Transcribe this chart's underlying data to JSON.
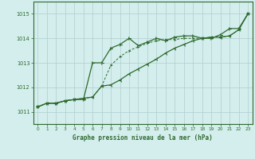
{
  "title": "Graphe pression niveau de la mer (hPa)",
  "xlim": [
    -0.5,
    23.5
  ],
  "ylim": [
    1010.5,
    1015.5
  ],
  "yticks": [
    1011,
    1012,
    1013,
    1014,
    1015
  ],
  "xticks": [
    0,
    1,
    2,
    3,
    4,
    5,
    6,
    7,
    8,
    9,
    10,
    11,
    12,
    13,
    14,
    15,
    16,
    17,
    18,
    19,
    20,
    21,
    22,
    23
  ],
  "background_color": "#d4eeed",
  "grid_color": "#b0cccc",
  "line_color": "#2d6a2d",
  "series1_x": [
    0,
    1,
    2,
    3,
    4,
    5,
    6,
    7,
    8,
    9,
    10,
    11,
    12,
    13,
    14,
    15,
    16,
    17,
    18,
    19,
    20,
    21,
    22,
    23
  ],
  "series1_y": [
    1011.2,
    1011.35,
    1011.35,
    1011.45,
    1011.5,
    1011.5,
    1013.0,
    1013.0,
    1013.6,
    1013.75,
    1014.0,
    1013.7,
    1013.85,
    1014.0,
    1013.9,
    1014.05,
    1014.1,
    1014.1,
    1014.0,
    1014.0,
    1014.15,
    1014.4,
    1014.4,
    1015.0
  ],
  "series2_x": [
    0,
    1,
    2,
    3,
    4,
    5,
    6,
    7,
    8,
    9,
    10,
    11,
    12,
    13,
    14,
    15,
    16,
    17,
    18,
    19,
    20,
    21,
    22,
    23
  ],
  "series2_y": [
    1011.2,
    1011.35,
    1011.35,
    1011.45,
    1011.5,
    1011.55,
    1011.6,
    1012.05,
    1012.1,
    1012.3,
    1012.55,
    1012.75,
    1012.95,
    1013.15,
    1013.4,
    1013.6,
    1013.75,
    1013.9,
    1014.0,
    1014.05,
    1014.05,
    1014.1,
    1014.35,
    1015.0
  ],
  "series3_x": [
    0,
    1,
    2,
    3,
    4,
    5,
    6,
    7,
    8,
    9,
    10,
    11,
    12,
    13,
    14,
    15,
    16,
    17,
    18,
    19,
    20,
    21,
    22,
    23
  ],
  "series3_y": [
    1011.2,
    1011.35,
    1011.35,
    1011.45,
    1011.5,
    1011.55,
    1011.6,
    1012.05,
    1012.9,
    1013.25,
    1013.5,
    1013.65,
    1013.8,
    1013.9,
    1013.95,
    1013.95,
    1014.0,
    1014.0,
    1014.0,
    1014.05,
    1014.05,
    1014.1,
    1014.35,
    1015.0
  ]
}
